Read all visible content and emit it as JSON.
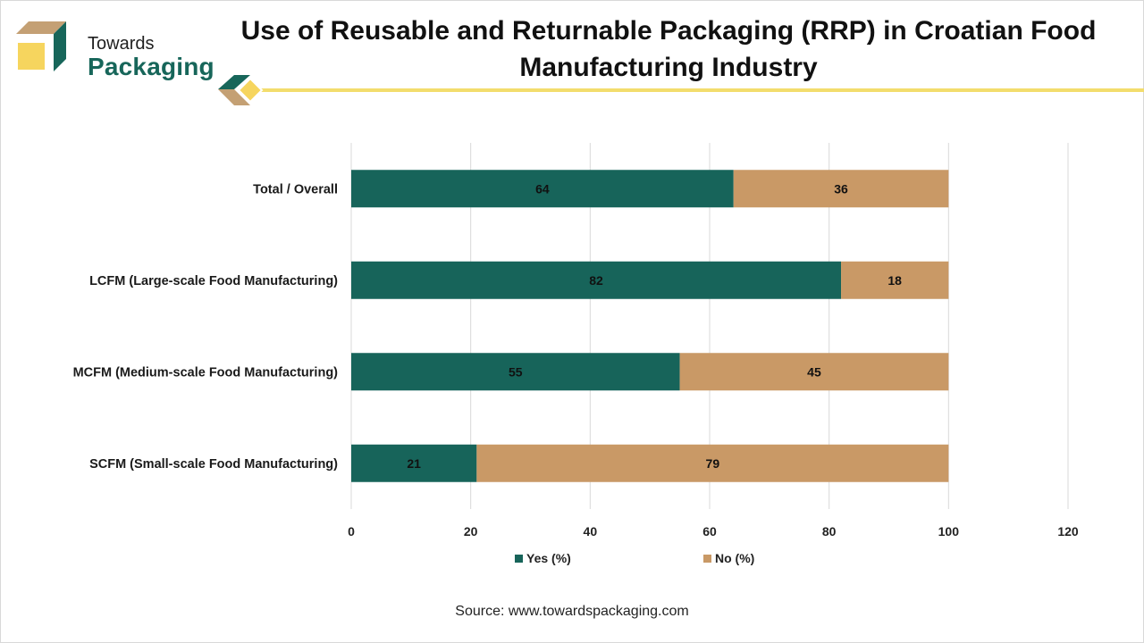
{
  "logo": {
    "line1": "Towards",
    "line2": "Packaging"
  },
  "title": "Use of Reusable and Returnable Packaging (RRP) in Croatian Food Manufacturing Industry",
  "source": "Source: www.towardspackaging.com",
  "colors": {
    "yes": "#17645a",
    "no": "#c99966",
    "accent": "#f3dd6d",
    "grid": "#d9d9d9"
  },
  "chart_data": {
    "type": "bar",
    "orientation": "horizontal",
    "stacked": true,
    "title": "Use of Reusable and Returnable Packaging (RRP) in Croatian Food Manufacturing Industry",
    "categories": [
      "Total / Overall",
      "LCFM (Large-scale Food Manufacturing)",
      "MCFM (Medium-scale Food Manufacturing)",
      "SCFM (Small-scale Food Manufacturing)"
    ],
    "series": [
      {
        "name": "Yes (%)",
        "values": [
          64,
          82,
          55,
          21
        ]
      },
      {
        "name": "No (%)",
        "values": [
          36,
          18,
          45,
          79
        ]
      }
    ],
    "xlim": [
      0,
      120
    ],
    "xticks": [
      0,
      20,
      40,
      60,
      80,
      100,
      120
    ],
    "xlabel": "",
    "ylabel": "",
    "grid": true,
    "legend": "bottom"
  }
}
